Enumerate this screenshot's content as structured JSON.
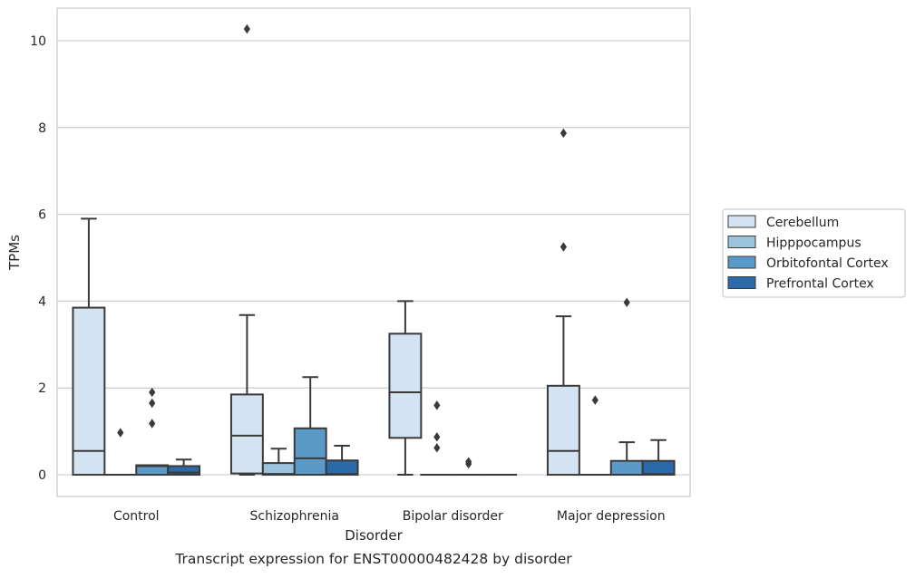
{
  "caption": "Transcript expression for ENST00000482428 by disorder",
  "chart_data": {
    "type": "box",
    "xlabel": "Disorder",
    "ylabel": "TPMs",
    "ylim": [
      -0.5,
      10.75
    ],
    "yticks": [
      0,
      2,
      4,
      6,
      8,
      10
    ],
    "categories": [
      "Control",
      "Schizophrenia",
      "Bipolar disorder",
      "Major depression"
    ],
    "grid": "horizontal",
    "legend_position": "right",
    "series": [
      {
        "name": "Cerebellum",
        "color": "#d4e3f2",
        "boxes": [
          {
            "min": 0,
            "q1": 0,
            "median": 0.55,
            "q3": 3.85,
            "max": 5.9,
            "outliers": []
          },
          {
            "min": 0,
            "q1": 0.03,
            "median": 0.9,
            "q3": 1.85,
            "max": 3.68,
            "outliers": [
              10.27
            ]
          },
          {
            "min": 0,
            "q1": 0.85,
            "median": 1.9,
            "q3": 3.25,
            "max": 4.0,
            "outliers": []
          },
          {
            "min": 0,
            "q1": 0,
            "median": 0.55,
            "q3": 2.05,
            "max": 3.65,
            "outliers": [
              5.25,
              7.87
            ]
          }
        ]
      },
      {
        "name": "Hipppocampus",
        "color": "#9cc3dd",
        "boxes": [
          {
            "min": 0,
            "q1": 0,
            "median": 0,
            "q3": 0,
            "max": 0,
            "outliers": [
              0.97
            ]
          },
          {
            "min": 0,
            "q1": 0,
            "median": 0.02,
            "q3": 0.27,
            "max": 0.6,
            "outliers": []
          },
          {
            "min": 0,
            "q1": 0,
            "median": 0,
            "q3": 0,
            "max": 0,
            "outliers": [
              0.62,
              0.87,
              1.6
            ]
          },
          {
            "min": 0,
            "q1": 0,
            "median": 0,
            "q3": 0,
            "max": 0,
            "outliers": [
              1.72
            ]
          }
        ]
      },
      {
        "name": "Orbitofontal Cortex",
        "color": "#5b9ac6",
        "boxes": [
          {
            "min": 0,
            "q1": 0,
            "median": 0.2,
            "q3": 0.22,
            "max": 0.22,
            "outliers": [
              1.18,
              1.65,
              1.9
            ]
          },
          {
            "min": 0,
            "q1": 0,
            "median": 0.38,
            "q3": 1.07,
            "max": 2.25,
            "outliers": []
          },
          {
            "min": 0,
            "q1": 0,
            "median": 0,
            "q3": 0,
            "max": 0,
            "outliers": [
              0.25,
              0.3
            ]
          },
          {
            "min": 0,
            "q1": 0,
            "median": 0,
            "q3": 0.32,
            "max": 0.75,
            "outliers": [
              3.97
            ]
          }
        ]
      },
      {
        "name": "Prefrontal Cortex",
        "color": "#2a6aa8",
        "boxes": [
          {
            "min": 0,
            "q1": 0,
            "median": 0.05,
            "q3": 0.2,
            "max": 0.35,
            "outliers": []
          },
          {
            "min": 0,
            "q1": 0,
            "median": 0.02,
            "q3": 0.33,
            "max": 0.67,
            "outliers": []
          },
          {
            "min": 0,
            "q1": 0,
            "median": 0,
            "q3": 0,
            "max": 0,
            "outliers": []
          },
          {
            "min": 0,
            "q1": 0,
            "median": 0.02,
            "q3": 0.32,
            "max": 0.8,
            "outliers": []
          }
        ]
      }
    ]
  }
}
